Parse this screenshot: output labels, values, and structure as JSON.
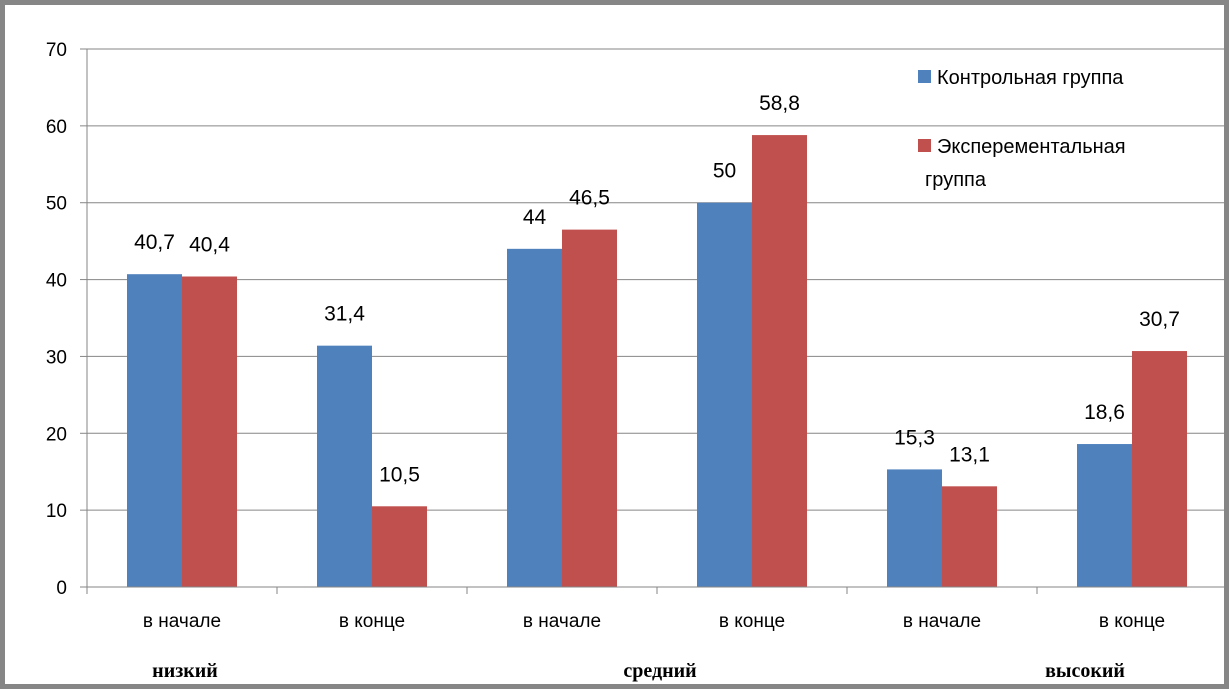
{
  "chart_data": {
    "type": "bar",
    "categories": [
      "в начале",
      "в конце",
      "в начале",
      "в конце",
      "в начале",
      "в конце"
    ],
    "groups": [
      "низкий",
      "средний",
      "высокий"
    ],
    "series": [
      {
        "name": "Контрольная группа",
        "values": [
          40.7,
          31.4,
          44,
          50,
          15.3,
          18.6
        ],
        "labels": [
          "40,7",
          "31,4",
          "44",
          "50",
          "15,3",
          "18,6"
        ],
        "color": "#4F81BD"
      },
      {
        "name": "Эксперементальная группа",
        "legend_lines": [
          "Эксперементальная",
          "группа"
        ],
        "values": [
          40.4,
          10.5,
          46.5,
          58.8,
          13.1,
          30.7
        ],
        "labels": [
          "40,4",
          "10,5",
          "46,5",
          "58,8",
          "13,1",
          "30,7"
        ],
        "color": "#C0504D"
      }
    ],
    "yticks": [
      "0",
      "10",
      "20",
      "30",
      "40",
      "50",
      "60",
      "70"
    ],
    "ylim": [
      0,
      70
    ],
    "grid": true,
    "legend_position": "top-right",
    "title": "",
    "xlabel": "",
    "ylabel": ""
  }
}
